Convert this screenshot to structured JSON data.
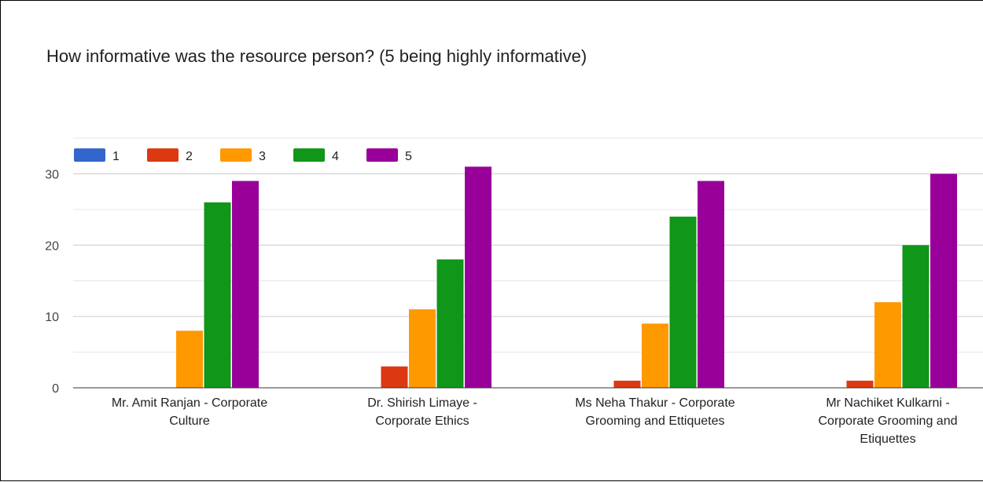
{
  "chart_data": {
    "type": "bar",
    "title": "How informative was the resource person? (5 being highly informative)",
    "categories": [
      [
        "Mr. Amit Ranjan - Corporate",
        "Culture"
      ],
      [
        "Dr. Shirish Limaye -",
        "Corporate Ethics"
      ],
      [
        "Ms Neha Thakur - Corporate",
        "Grooming and Ettiquetes"
      ],
      [
        "Mr Nachiket Kulkarni -",
        "Corporate Grooming and",
        "Etiquettes"
      ]
    ],
    "series": [
      {
        "name": "1",
        "color": "#3366cc",
        "values": [
          0,
          0,
          0,
          0
        ]
      },
      {
        "name": "2",
        "color": "#dc3912",
        "values": [
          0,
          3,
          1,
          1
        ]
      },
      {
        "name": "3",
        "color": "#ff9900",
        "values": [
          8,
          11,
          9,
          12
        ]
      },
      {
        "name": "4",
        "color": "#109618",
        "values": [
          26,
          18,
          24,
          20
        ]
      },
      {
        "name": "5",
        "color": "#990099",
        "values": [
          29,
          31,
          29,
          30
        ]
      }
    ],
    "yticks": [
      0,
      10,
      20,
      30
    ],
    "ylim": [
      0,
      35
    ],
    "grid": true,
    "legend_position": "top-left"
  }
}
